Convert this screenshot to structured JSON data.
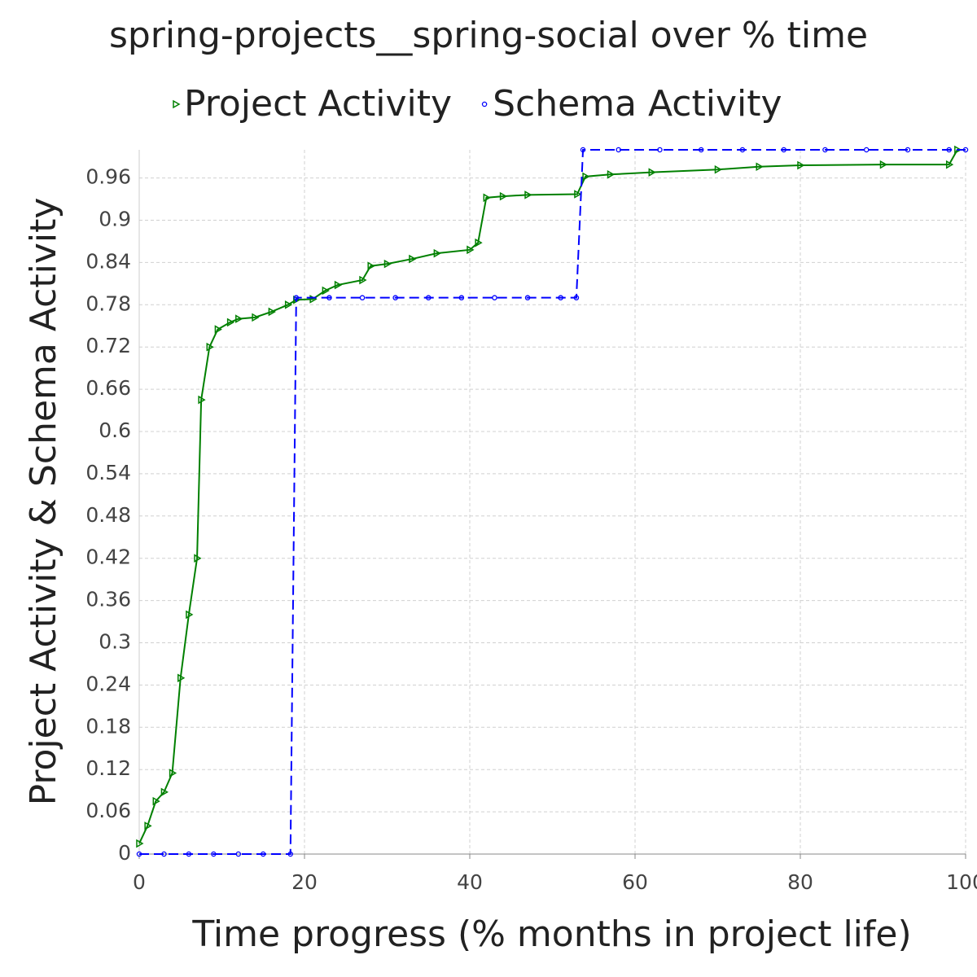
{
  "chart_data": {
    "type": "line",
    "title": "spring-projects__spring-social over % time",
    "x_label": "Time progress (% months in project life)",
    "y_label": "Project Activity & Schema Activity",
    "xlim": [
      0,
      100
    ],
    "xticks": [
      0,
      20,
      40,
      60,
      80,
      100
    ],
    "ylim": [
      0,
      1
    ],
    "yticks": [
      0,
      0.06,
      0.12,
      0.18,
      0.24,
      0.3,
      0.36,
      0.42,
      0.48,
      0.54,
      0.6,
      0.66,
      0.72,
      0.78,
      0.84,
      0.9,
      0.96
    ],
    "grid": true,
    "series": [
      {
        "name": "Project Activity",
        "color": "#008000",
        "marker": "triangle",
        "dash": false,
        "x": [
          0,
          1,
          2,
          3,
          4,
          5,
          6,
          7,
          7.5,
          8.5,
          9.5,
          11,
          12,
          14,
          16,
          18,
          19,
          21,
          22.5,
          24,
          27,
          28,
          30,
          33,
          36,
          40,
          41,
          42,
          44,
          47,
          53,
          54,
          57,
          62,
          70,
          75,
          80,
          90,
          98,
          99
        ],
        "values": [
          0.015,
          0.04,
          0.075,
          0.088,
          0.115,
          0.25,
          0.34,
          0.42,
          0.645,
          0.72,
          0.745,
          0.755,
          0.76,
          0.762,
          0.77,
          0.78,
          0.787,
          0.788,
          0.8,
          0.808,
          0.815,
          0.835,
          0.838,
          0.845,
          0.853,
          0.858,
          0.868,
          0.932,
          0.934,
          0.936,
          0.937,
          0.962,
          0.965,
          0.968,
          0.972,
          0.976,
          0.978,
          0.979,
          0.979,
          1.0
        ]
      },
      {
        "name": "Schema Activity",
        "color": "#0000ff",
        "marker": "circle",
        "dash": true,
        "x": [
          0,
          3,
          6,
          9,
          12,
          15,
          18.3,
          19,
          23,
          27,
          31,
          35,
          39,
          43,
          47,
          51,
          52.9,
          53.7,
          58,
          63,
          68,
          73,
          78,
          83,
          88,
          93,
          98,
          100
        ],
        "values": [
          0,
          0,
          0,
          0,
          0,
          0,
          0,
          0.79,
          0.79,
          0.79,
          0.79,
          0.79,
          0.79,
          0.79,
          0.79,
          0.79,
          0.79,
          1.0,
          1.0,
          1.0,
          1.0,
          1.0,
          1.0,
          1.0,
          1.0,
          1.0,
          1.0,
          1.0
        ]
      }
    ]
  }
}
